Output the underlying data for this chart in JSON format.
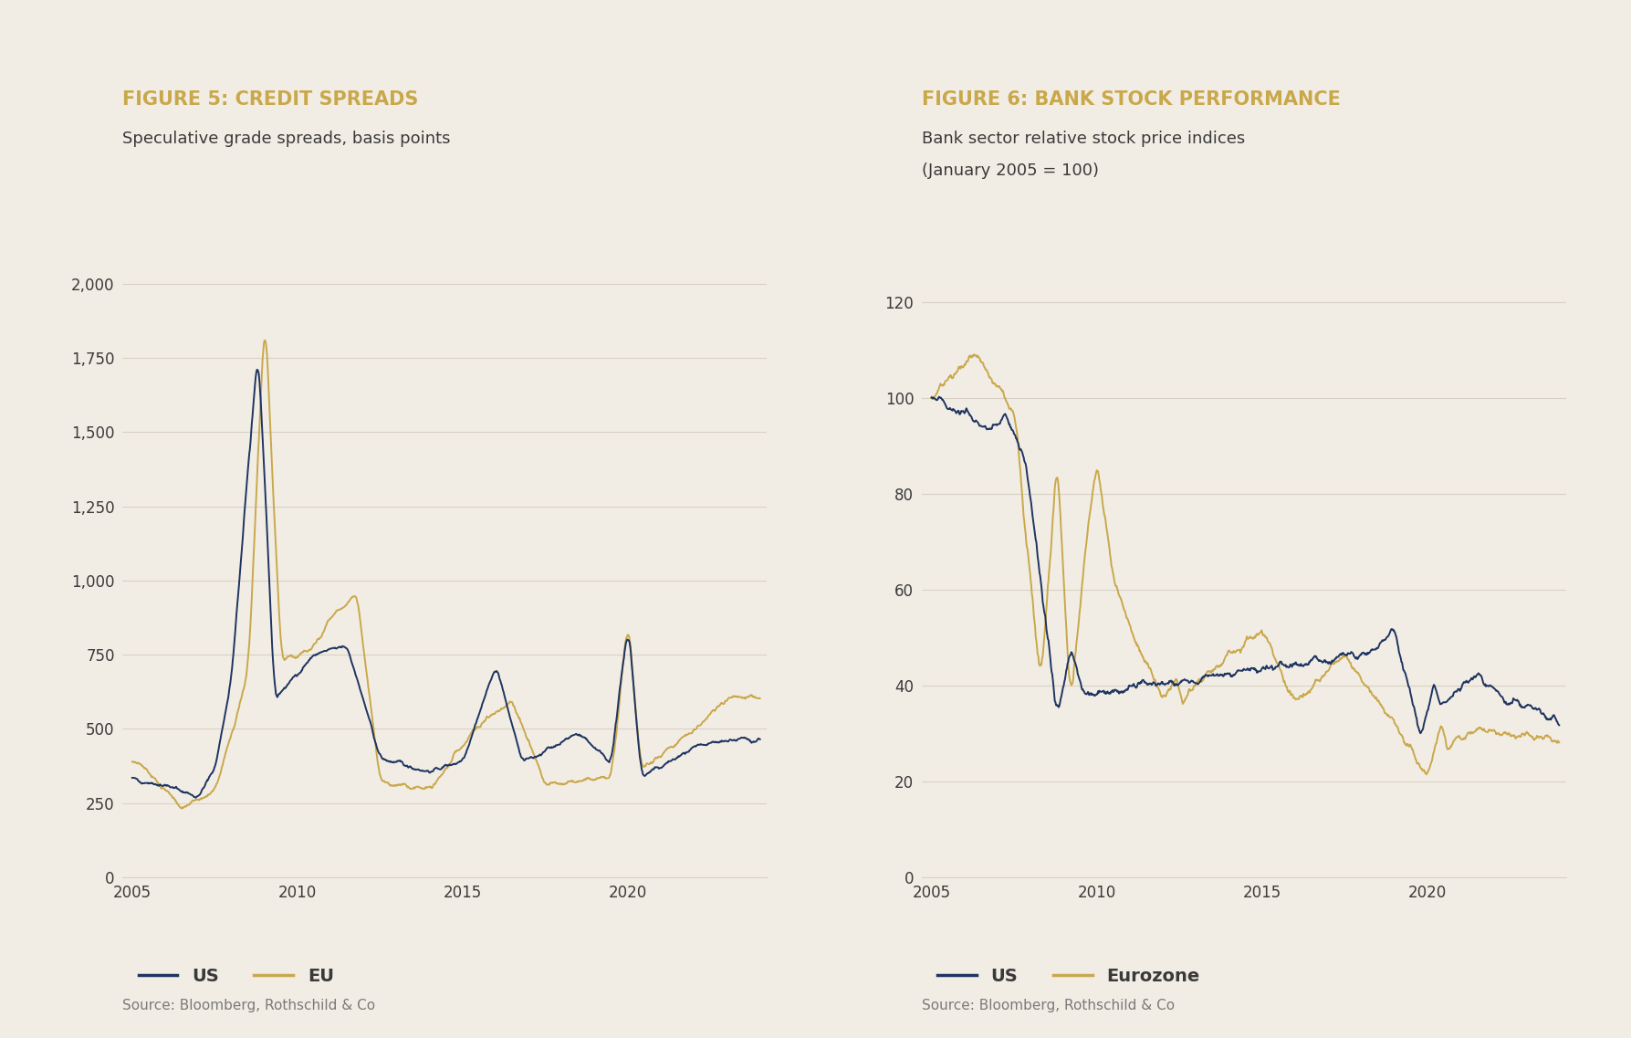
{
  "fig5_title": "FIGURE 5: CREDIT SPREADS",
  "fig5_subtitle": "Speculative grade spreads, basis points",
  "fig5_source": "Source: Bloomberg, Rothschild & Co",
  "fig5_legend": [
    "US",
    "EU"
  ],
  "fig5_ylim": [
    0,
    2100
  ],
  "fig5_yticks": [
    0,
    250,
    500,
    750,
    1000,
    1250,
    1500,
    1750,
    2000
  ],
  "fig5_ytick_labels": [
    "0",
    "250",
    "500",
    "750",
    "1,000",
    "1,250",
    "1,500",
    "1,750",
    "2,000"
  ],
  "fig6_title": "FIGURE 6: BANK STOCK PERFORMANCE",
  "fig6_subtitle_line1": "Bank sector relative stock price indices",
  "fig6_subtitle_line2": "(January 2005 = 100)",
  "fig6_source": "Source: Bloomberg, Rothschild & Co",
  "fig6_legend": [
    "US",
    "Eurozone"
  ],
  "fig6_ylim": [
    0,
    130
  ],
  "fig6_yticks": [
    0,
    20,
    40,
    60,
    80,
    100,
    120
  ],
  "fig6_ytick_labels": [
    "0",
    "20",
    "40",
    "60",
    "80",
    "100",
    "120"
  ],
  "color_navy": "#1e3461",
  "color_gold": "#c9a84c",
  "bg_color": "#f2ede4",
  "title_color": "#c9a84c",
  "text_color": "#3a3a3a",
  "grid_color": "#d8d0c4",
  "line_width": 1.4,
  "xtick_years": [
    2005,
    2010,
    2015,
    2020
  ],
  "xmin": 2004.7,
  "xmax": 2024.2
}
